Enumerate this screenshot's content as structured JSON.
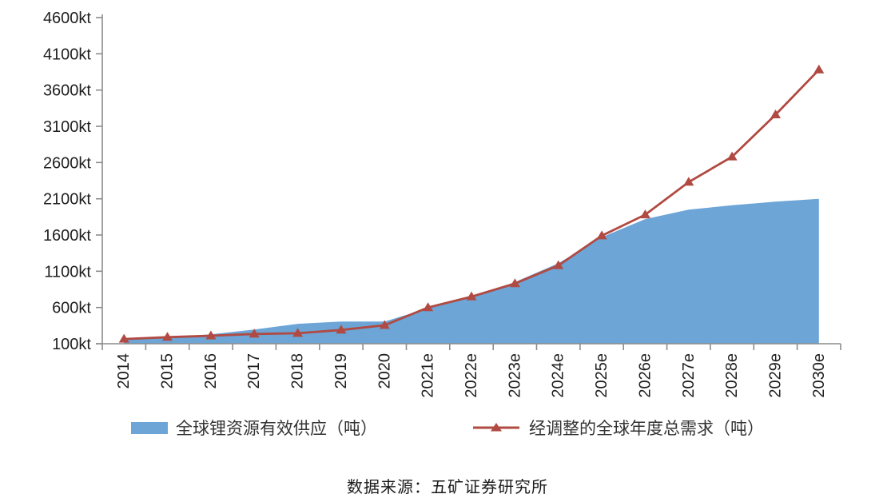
{
  "chart_data": {
    "type": "area+line combo",
    "title": "",
    "categories": [
      "2014",
      "2015",
      "2016",
      "2017",
      "2018",
      "2019",
      "2020",
      "2021e",
      "2022e",
      "2023e",
      "2024e",
      "2025e",
      "2026e",
      "2027e",
      "2028e",
      "2029e",
      "2030e"
    ],
    "series": [
      {
        "name": "全球锂资源有效供应（吨）",
        "type": "area",
        "color": "#6CA5D6",
        "values": [
          160,
          185,
          230,
          295,
          375,
          405,
          405,
          590,
          745,
          950,
          1210,
          1570,
          1820,
          1950,
          2010,
          2060,
          2100
        ]
      },
      {
        "name": "经调整的全球年度总需求（吨）",
        "type": "line",
        "marker": "triangle",
        "color": "#B14A42",
        "values": [
          165,
          190,
          210,
          235,
          245,
          290,
          355,
          600,
          750,
          930,
          1180,
          1590,
          1880,
          2330,
          2680,
          3260,
          3880
        ]
      }
    ],
    "xlabel": "",
    "ylabel": "",
    "ylim": [
      100,
      4600
    ],
    "y_tick_values": [
      100,
      600,
      1100,
      1600,
      2100,
      2600,
      3100,
      3600,
      4100,
      4600
    ],
    "y_tick_suffix": "kt",
    "x_tick_label_rotation": -90,
    "grid": false,
    "legend_position": "bottom",
    "axis_color": "#8c8c8c",
    "tick_label_color": "#1f1f1f"
  },
  "legend": {
    "supply_label": "全球锂资源有效供应（吨）",
    "demand_label": "经调整的全球年度总需求（吨）"
  },
  "source": {
    "text": "数据来源：五矿证券研究所"
  }
}
